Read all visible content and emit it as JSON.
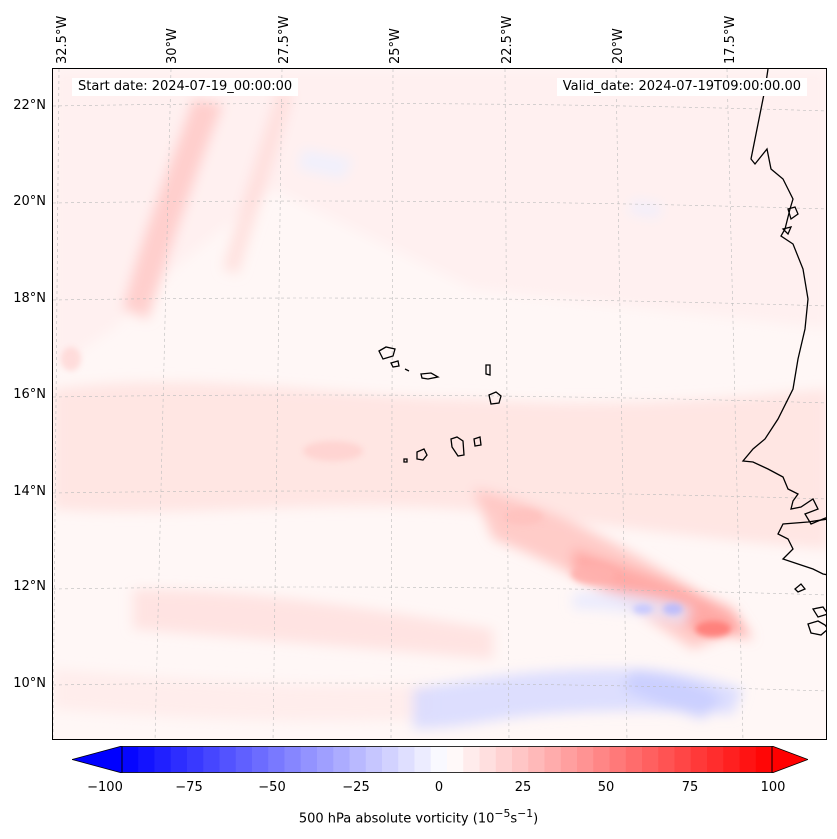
{
  "map": {
    "start_date": "Start date: 2024-07-19_00:00:00",
    "valid_date": "Valid_date: 2024-07-19T09:00:00.00",
    "variable": "500 hPa absolute vorticity",
    "units_base": "10",
    "units_exp": "−5",
    "units_s": "s",
    "units_sexp": "−1",
    "longitude_labels": [
      "32.5°W",
      "30°W",
      "27.5°W",
      "25°W",
      "22.5°W",
      "20°W",
      "17.5°W"
    ],
    "latitude_labels": [
      "22°N",
      "20°N",
      "18°N",
      "16°N",
      "14°N",
      "12°N",
      "10°N"
    ],
    "features": [
      "cape-verde-islands",
      "african-coastline"
    ]
  },
  "colorbar": {
    "min": -100,
    "max": 100,
    "ticks": [
      "−100",
      "−75",
      "−50",
      "−25",
      "0",
      "25",
      "50",
      "75",
      "100"
    ],
    "colors": {
      "negative": "#0000ff",
      "zero": "#ffffff",
      "positive": "#ff0000"
    }
  }
}
